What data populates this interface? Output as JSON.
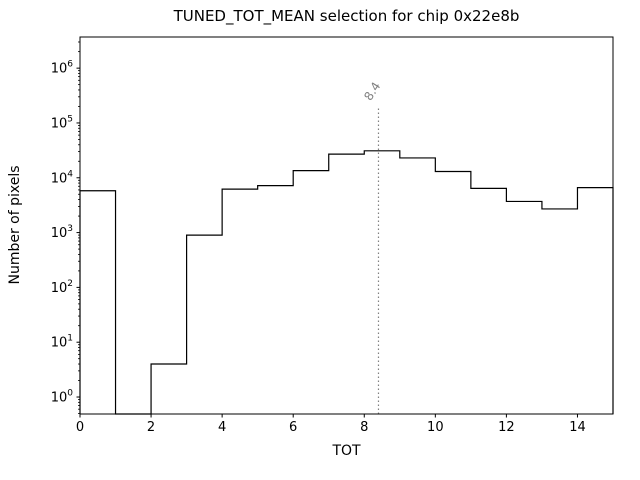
{
  "chart_data": {
    "type": "bar",
    "style": "step-histogram",
    "title": "TUNED_TOT_MEAN selection for chip 0x22e8b",
    "xlabel": "TOT",
    "ylabel": "Number of pixels",
    "xlim": [
      0,
      15
    ],
    "ylim": [
      0.49,
      3700000
    ],
    "yscale": "log",
    "grid": false,
    "bin_edges": [
      0,
      1,
      2,
      3,
      4,
      5,
      6,
      7,
      8,
      9,
      10,
      11,
      12,
      13,
      14,
      15
    ],
    "counts": [
      5800,
      0,
      4,
      900,
      6200,
      7200,
      13500,
      27000,
      31000,
      23000,
      13000,
      6400,
      3700,
      2700,
      6600
    ],
    "xticks": [
      0,
      2,
      4,
      6,
      8,
      10,
      12,
      14
    ],
    "ytick_exponents": [
      0,
      1,
      2,
      3,
      4,
      5,
      6
    ],
    "line_color": "#000000",
    "vline": {
      "x": 8.4,
      "label": "8.4",
      "top_value": 200000,
      "color": "#808080"
    }
  }
}
